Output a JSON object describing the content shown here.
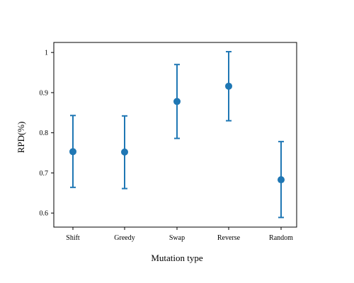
{
  "chart_data": {
    "type": "errorbar",
    "xlabel": "Mutation type",
    "ylabel": "RPD(%)",
    "categories": [
      "Shift",
      "Greedy",
      "Swap",
      "Reverse",
      "Random"
    ],
    "series": [
      {
        "values": [
          0.753,
          0.752,
          0.878,
          0.916,
          0.683
        ],
        "lower": [
          0.664,
          0.661,
          0.786,
          0.83,
          0.589
        ],
        "upper": [
          0.843,
          0.842,
          0.97,
          1.002,
          0.778
        ],
        "color": "#1f77b4"
      }
    ],
    "yticks": [
      0.6,
      0.7,
      0.8,
      0.9,
      1
    ],
    "ytick_labels": [
      "0.6",
      "0.7",
      "0.8",
      "0.9",
      "1"
    ],
    "ylim": [
      0.565,
      1.025
    ],
    "grid": false
  }
}
